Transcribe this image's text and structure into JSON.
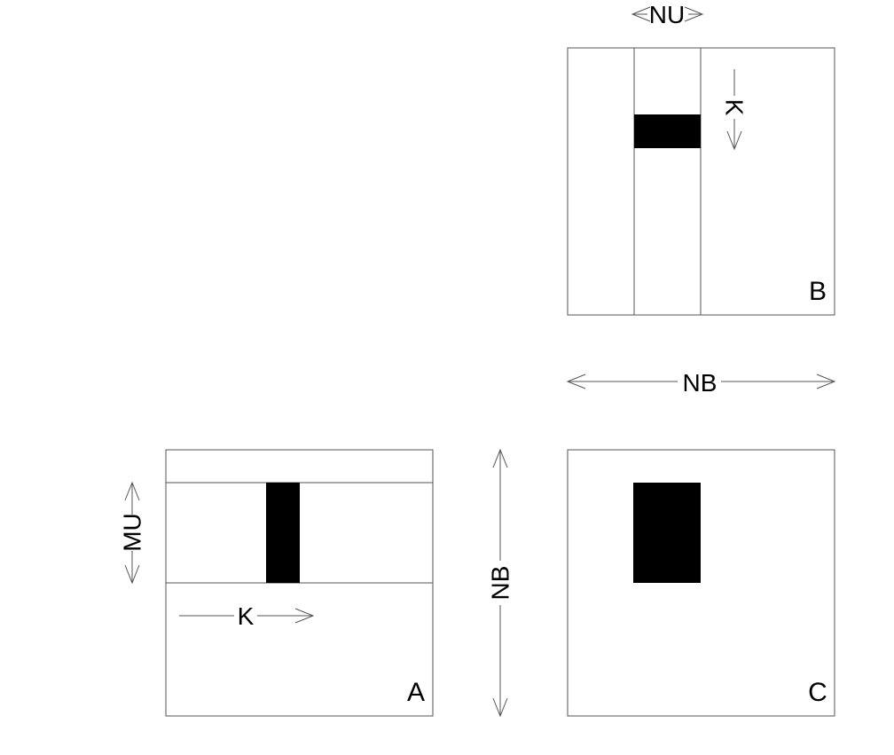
{
  "matrices": {
    "a": {
      "label": "A"
    },
    "b": {
      "label": "B"
    },
    "c": {
      "label": "C"
    }
  },
  "dimensions": {
    "nu": "NU",
    "k_b": "K",
    "nb_horizontal": "NB",
    "nb_vertical": "NB",
    "mu": "MU",
    "k_a": "K"
  },
  "colors": {
    "line": "#555555",
    "block": "#000000",
    "background": "#ffffff"
  }
}
